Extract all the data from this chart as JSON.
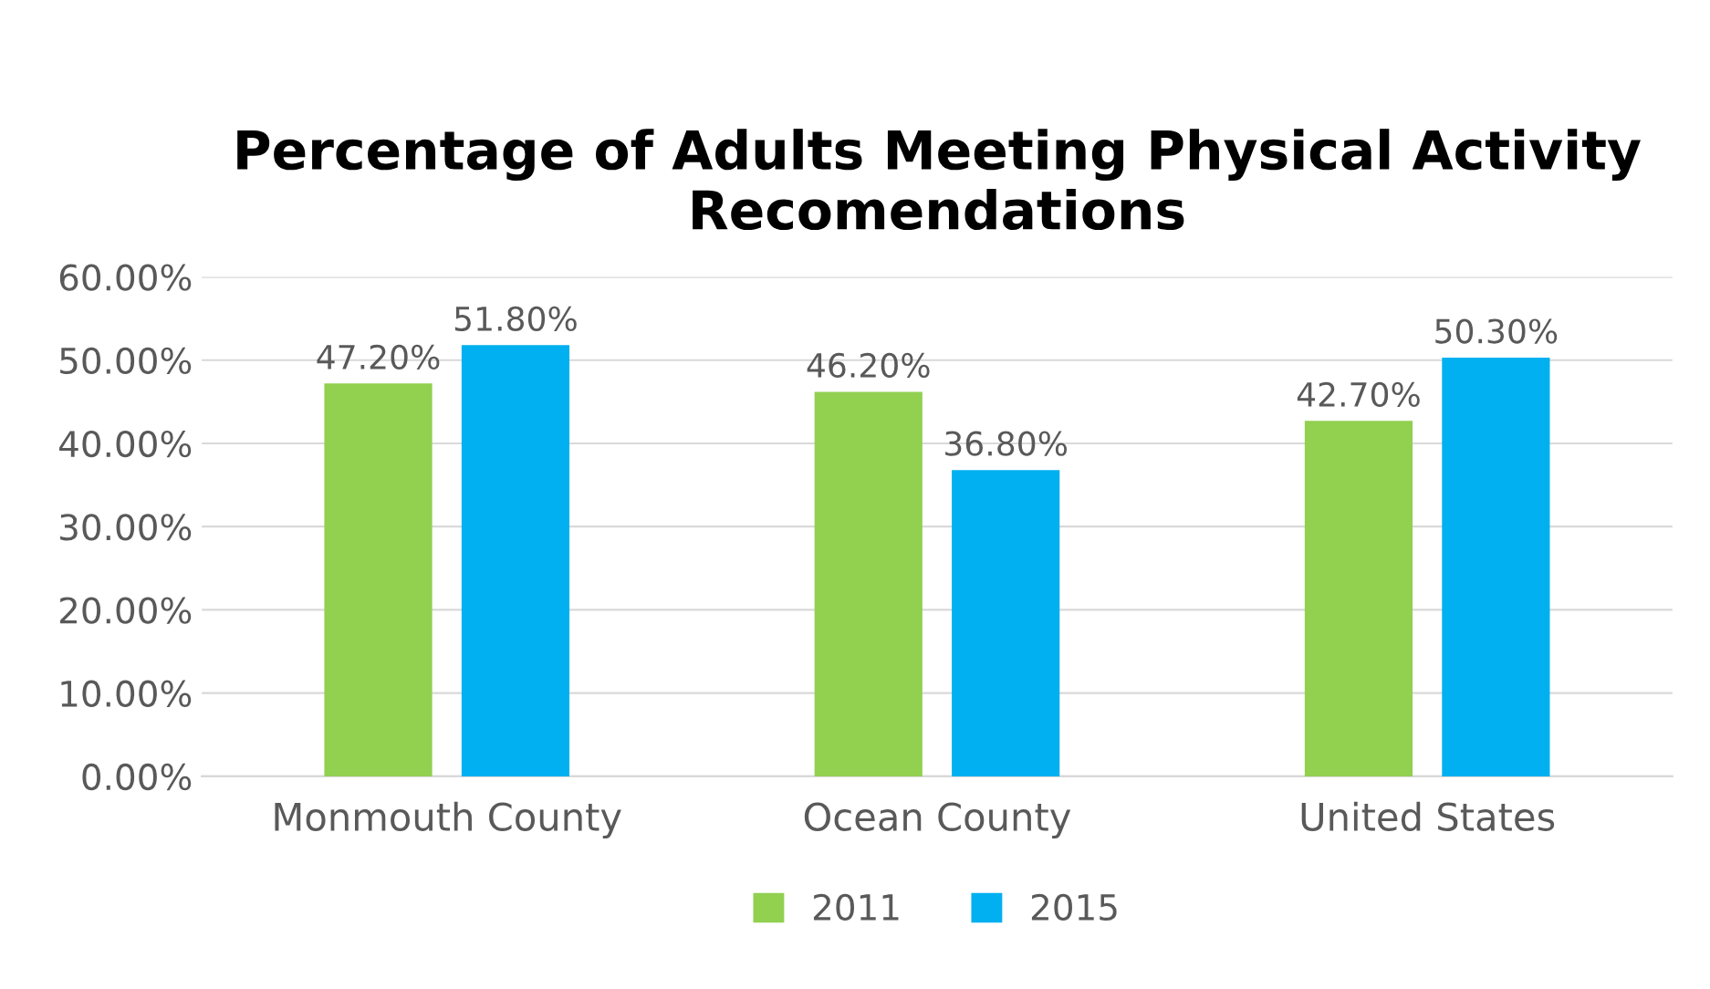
{
  "chart_data": {
    "type": "bar",
    "title": "Percentage of Adults Meeting Physical Activity Recomendations",
    "categories": [
      "Monmouth County",
      "Ocean County",
      "United States"
    ],
    "series": [
      {
        "name": "2011",
        "color": "#92d050",
        "values": [
          47.2,
          46.2,
          42.7
        ],
        "value_labels": [
          "47.20%",
          "46.20%",
          "42.70%"
        ]
      },
      {
        "name": "2015",
        "color": "#00b0f0",
        "values": [
          51.8,
          36.8,
          50.3
        ],
        "value_labels": [
          "51.80%",
          "36.80%",
          "50.30%"
        ]
      }
    ],
    "ylim": [
      0,
      60
    ],
    "yticks": [
      {
        "value": 0,
        "label": "0.00%"
      },
      {
        "value": 10,
        "label": "10.00%"
      },
      {
        "value": 20,
        "label": "20.00%"
      },
      {
        "value": 30,
        "label": "30.00%"
      },
      {
        "value": 40,
        "label": "40.00%"
      },
      {
        "value": 50,
        "label": "50.00%"
      },
      {
        "value": 60,
        "label": "60.00%"
      }
    ],
    "grid": "y",
    "legend": "bottom"
  }
}
